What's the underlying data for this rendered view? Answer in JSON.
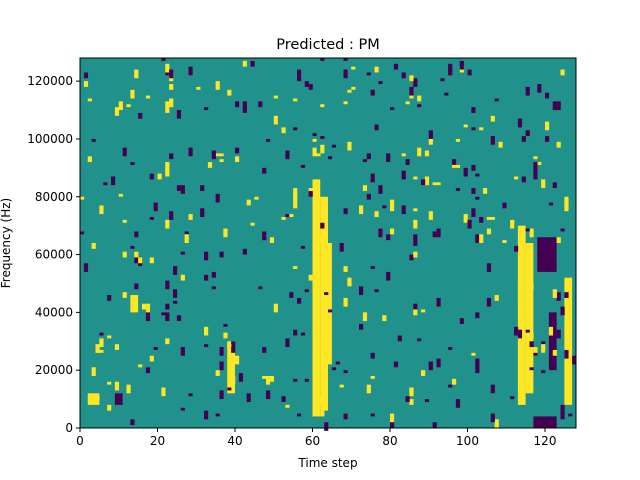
{
  "chart_data": {
    "type": "heatmap",
    "title": "Predicted : PM",
    "xlabel": "Time step",
    "ylabel": "Frequency (Hz)",
    "xlim": [
      0,
      128
    ],
    "ylim": [
      0,
      128000
    ],
    "x_ticks": [
      0,
      20,
      40,
      60,
      80,
      100,
      120
    ],
    "y_ticks": [
      0,
      20000,
      40000,
      60000,
      80000,
      100000,
      120000
    ],
    "rows": 128,
    "cols": 128,
    "colormap": "viridis",
    "background_value": 0,
    "colors": {
      "low": "#440154",
      "mid": "#21918c",
      "high": "#fde725"
    },
    "high_bands": [
      {
        "x": [
          60,
          62
        ],
        "y": [
          4000,
          86000
        ]
      },
      {
        "x": [
          62,
          64
        ],
        "y": [
          6000,
          80000
        ]
      },
      {
        "x": [
          64,
          65
        ],
        "y": [
          22000,
          64000
        ]
      },
      {
        "x": [
          38,
          40
        ],
        "y": [
          12000,
          30000
        ]
      },
      {
        "x": [
          13,
          15
        ],
        "y": [
          40000,
          46000
        ]
      },
      {
        "x": [
          113,
          115
        ],
        "y": [
          8000,
          70000
        ]
      },
      {
        "x": [
          115,
          117
        ],
        "y": [
          12000,
          64000
        ]
      },
      {
        "x": [
          125,
          127
        ],
        "y": [
          8000,
          52000
        ]
      },
      {
        "x": [
          2,
          5
        ],
        "y": [
          8000,
          12000
        ]
      }
    ],
    "low_bands": [
      {
        "x": [
          118,
          123
        ],
        "y": [
          54000,
          66000
        ]
      },
      {
        "x": [
          117,
          123
        ],
        "y": [
          0,
          4000
        ]
      },
      {
        "x": [
          121,
          123
        ],
        "y": [
          20000,
          40000
        ]
      },
      {
        "x": [
          9,
          11
        ],
        "y": [
          8000,
          12000
        ]
      }
    ]
  }
}
